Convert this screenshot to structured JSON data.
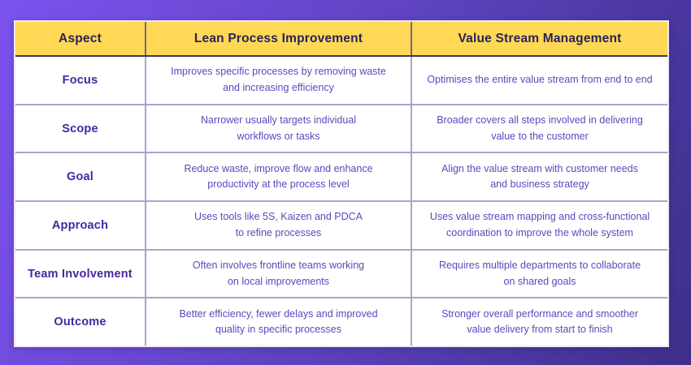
{
  "theme": {
    "bg_grad_start": "#7C52EE",
    "bg_grad_mid": "#6245C6",
    "bg_grad_end": "#3E2F8A",
    "outer_border": "#ECEAF6",
    "header_bg": "#FFD955",
    "header_text": "#2B2259",
    "header_border_bottom": "#3D3758",
    "divider_dark": "#6E6890",
    "divider_light": "#ABA4CB",
    "aspect_text": "#46279E",
    "body_text": "#5C48BB",
    "cell_bg": "#FFFFFF"
  },
  "table": {
    "columns": [
      "Aspect",
      "Lean Process Improvement",
      "Value Stream Management"
    ],
    "rows": [
      {
        "aspect": "Focus",
        "lean": "Improves specific processes by removing waste\nand increasing efficiency",
        "vsm": "Optimises the entire value stream from end to end"
      },
      {
        "aspect": "Scope",
        "lean": "Narrower usually targets individual\nworkflows or tasks",
        "vsm": "Broader covers all steps involved in delivering\nvalue to the customer"
      },
      {
        "aspect": "Goal",
        "lean": "Reduce waste, improve flow and enhance\nproductivity at the process level",
        "vsm": "Align the value stream with customer needs\nand business strategy"
      },
      {
        "aspect": "Approach",
        "lean": "Uses tools like 5S, Kaizen and PDCA\nto refine processes",
        "vsm": "Uses value stream mapping and cross-functional\ncoordination to improve the whole system"
      },
      {
        "aspect": "Team Involvement",
        "lean": "Often involves frontline teams working\non local improvements",
        "vsm": "Requires multiple departments to collaborate\non shared goals"
      },
      {
        "aspect": "Outcome",
        "lean": "Better efficiency, fewer delays and improved\nquality in specific processes",
        "vsm": "Stronger overall performance and smoother\nvalue delivery from start to finish"
      }
    ]
  }
}
